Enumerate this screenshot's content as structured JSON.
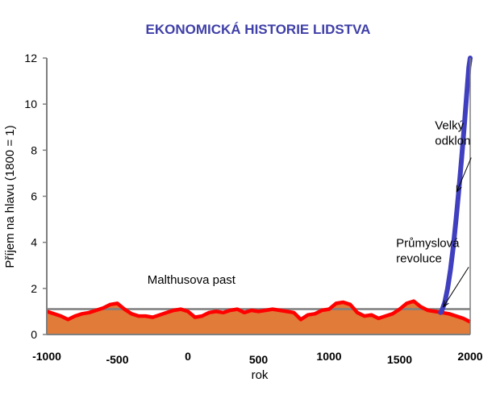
{
  "chart_data": {
    "type": "area",
    "title": "EKONOMICKÁ HISTORIE LIDSTVA",
    "xlabel": "rok",
    "ylabel": "Příjem na hlavu (1800 = 1)",
    "xlim": [
      -1000,
      2000
    ],
    "ylim": [
      0,
      12
    ],
    "xticks": [
      -1000,
      -500,
      0,
      500,
      1000,
      1500,
      2000
    ],
    "yticks": [
      0,
      2,
      4,
      6,
      8,
      10,
      12
    ],
    "grid": false,
    "reference_line": {
      "y": 1.1
    },
    "colors": {
      "title": "#3f3fa8",
      "malthus_line": "#ff0000",
      "area_fill": "#e07b39",
      "divergence_line": "#3f3fbf",
      "axes": "#7f7f7f"
    },
    "series": [
      {
        "name": "Malthusova past",
        "color": "#ff0000",
        "x": [
          -1000,
          -950,
          -900,
          -850,
          -800,
          -750,
          -700,
          -650,
          -600,
          -550,
          -500,
          -450,
          -400,
          -350,
          -300,
          -250,
          -200,
          -150,
          -100,
          -50,
          0,
          50,
          100,
          150,
          200,
          250,
          300,
          350,
          400,
          450,
          500,
          550,
          600,
          650,
          700,
          750,
          800,
          850,
          900,
          950,
          1000,
          1050,
          1100,
          1150,
          1200,
          1250,
          1300,
          1350,
          1400,
          1450,
          1500,
          1550,
          1600,
          1650,
          1700,
          1750,
          1800,
          1850,
          1900,
          1950,
          2000
        ],
        "y": [
          1.0,
          0.9,
          0.8,
          0.65,
          0.8,
          0.9,
          0.95,
          1.05,
          1.15,
          1.3,
          1.35,
          1.1,
          0.9,
          0.8,
          0.8,
          0.75,
          0.85,
          0.95,
          1.05,
          1.1,
          1.0,
          0.75,
          0.8,
          0.95,
          1.0,
          0.95,
          1.05,
          1.1,
          0.95,
          1.05,
          1.0,
          1.05,
          1.1,
          1.05,
          1.0,
          0.95,
          0.65,
          0.85,
          0.9,
          1.05,
          1.1,
          1.35,
          1.4,
          1.3,
          0.95,
          0.8,
          0.85,
          0.7,
          0.8,
          0.9,
          1.1,
          1.35,
          1.45,
          1.2,
          1.05,
          1.0,
          0.95,
          0.9,
          0.8,
          0.7,
          0.55
        ]
      },
      {
        "name": "Velký odklon",
        "color": "#3f3fbf",
        "x": [
          1790,
          1800,
          1820,
          1840,
          1860,
          1880,
          1900,
          1920,
          1940,
          1960,
          1980,
          1990,
          2000
        ],
        "y": [
          0.95,
          1.05,
          1.4,
          2.0,
          2.8,
          3.8,
          5.0,
          6.3,
          7.7,
          9.2,
          10.8,
          11.6,
          12.0
        ]
      }
    ],
    "annotations": [
      {
        "text": "Malthusova past",
        "x": 25,
        "y": 2.2
      },
      {
        "lines": [
          "Průmyslová",
          "revoluce"
        ],
        "x": 1475,
        "y": 3.8,
        "arrow_to": [
          1810,
          1.2
        ]
      },
      {
        "lines": [
          "Velký",
          "odklon"
        ],
        "x": 1750,
        "y": 8.9,
        "arrow_to": [
          1905,
          6.2
        ]
      }
    ]
  }
}
